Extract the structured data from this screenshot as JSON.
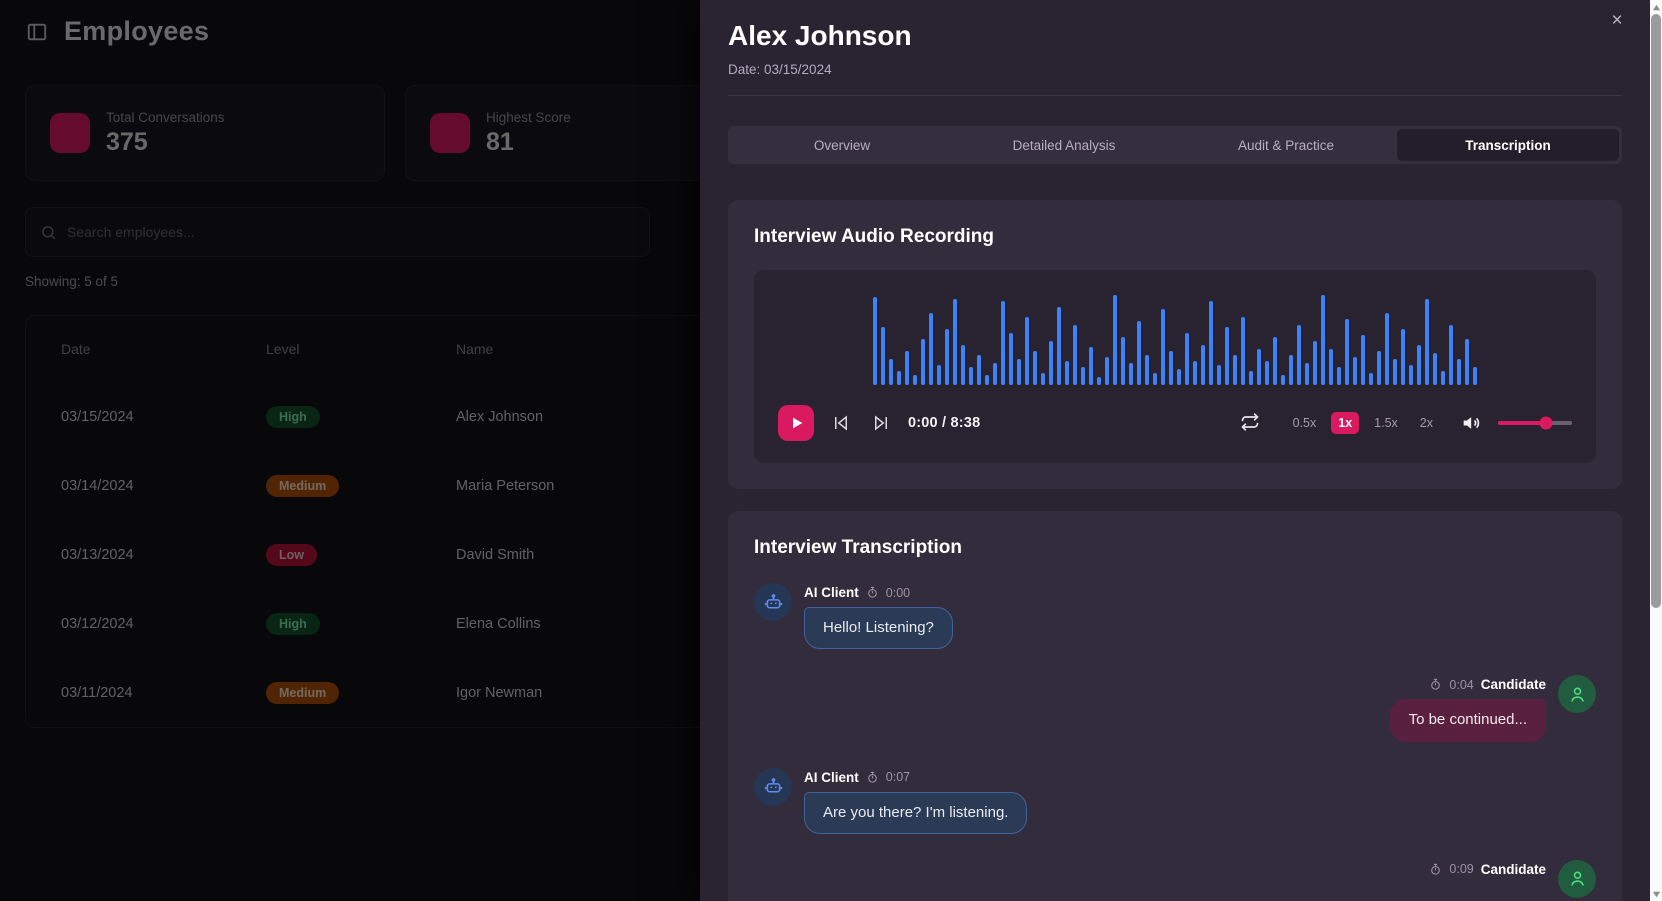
{
  "left_page": {
    "title": "Employees",
    "stats": [
      {
        "label": "Total Conversations",
        "value": "375"
      },
      {
        "label": "Highest Score",
        "value": "81"
      }
    ],
    "search_placeholder": "Search employees...",
    "showing": "Showing: 5 of 5",
    "table": {
      "headers": [
        "Date",
        "Level",
        "Name"
      ],
      "rows": [
        {
          "date": "03/15/2024",
          "level": "High",
          "name": "Alex Johnson"
        },
        {
          "date": "03/14/2024",
          "level": "Medium",
          "name": "Maria Peterson"
        },
        {
          "date": "03/13/2024",
          "level": "Low",
          "name": "David Smith"
        },
        {
          "date": "03/12/2024",
          "level": "High",
          "name": "Elena Collins"
        },
        {
          "date": "03/11/2024",
          "level": "Medium",
          "name": "Igor Newman"
        }
      ]
    }
  },
  "modal": {
    "title": "Alex Johnson",
    "date_line": "Date: 03/15/2024",
    "close_label": "×",
    "tabs": [
      {
        "label": "Overview",
        "active": false
      },
      {
        "label": "Detailed Analysis",
        "active": false
      },
      {
        "label": "Audit & Practice",
        "active": false
      },
      {
        "label": "Transcription",
        "active": true
      }
    ],
    "audio": {
      "title": "Interview Audio Recording",
      "time": "0:00 / 8:38",
      "speeds": [
        {
          "label": "0.5x",
          "active": false
        },
        {
          "label": "1x",
          "active": true
        },
        {
          "label": "1.5x",
          "active": false
        },
        {
          "label": "2x",
          "active": false
        }
      ],
      "volume_percent": 65,
      "waveform_bars": [
        88,
        58,
        26,
        14,
        34,
        10,
        46,
        72,
        20,
        56,
        86,
        40,
        18,
        30,
        10,
        22,
        84,
        52,
        26,
        68,
        34,
        12,
        44,
        78,
        24,
        60,
        18,
        38,
        8,
        28,
        90,
        48,
        22,
        64,
        30,
        12,
        76,
        34,
        16,
        52,
        24,
        40,
        84,
        20,
        58,
        30,
        68,
        14,
        36,
        24,
        48,
        10,
        30,
        60,
        22,
        44,
        90,
        36,
        18,
        66,
        28,
        50,
        12,
        34,
        72,
        26,
        56,
        20,
        40,
        86,
        32,
        14,
        60,
        26,
        46,
        18
      ]
    },
    "transcription": {
      "title": "Interview Transcription",
      "messages": [
        {
          "speaker": "AI Client",
          "side": "left",
          "time": "0:00",
          "text": "Hello! Listening?"
        },
        {
          "speaker": "Candidate",
          "side": "right",
          "time": "0:04",
          "text": "To be continued..."
        },
        {
          "speaker": "AI Client",
          "side": "left",
          "time": "0:07",
          "text": "Are you there? I'm listening."
        },
        {
          "speaker": "Candidate",
          "side": "right",
          "time": "0:09",
          "text": ""
        }
      ]
    }
  },
  "colors": {
    "accent": "#d91a60",
    "waveform": "#3f83f8"
  }
}
